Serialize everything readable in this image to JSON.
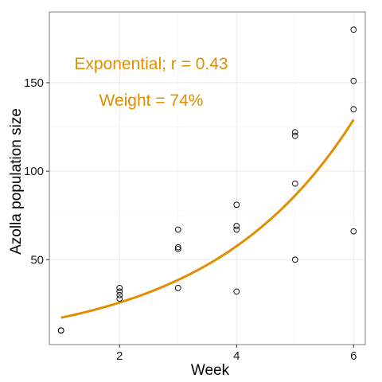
{
  "chart_data": {
    "type": "scatter",
    "xlabel": "Week",
    "ylabel": "Azolla population size",
    "xlim": [
      0.8,
      6.2
    ],
    "ylim": [
      2,
      190
    ],
    "xticks": [
      2,
      4,
      6
    ],
    "yticks": [
      50,
      100,
      150
    ],
    "grid": true,
    "legend": "none",
    "points": [
      {
        "x": 1,
        "y": 10
      },
      {
        "x": 1,
        "y": 10
      },
      {
        "x": 1,
        "y": 10
      },
      {
        "x": 1,
        "y": 10
      },
      {
        "x": 2,
        "y": 28
      },
      {
        "x": 2,
        "y": 30
      },
      {
        "x": 2,
        "y": 32
      },
      {
        "x": 2,
        "y": 34
      },
      {
        "x": 3,
        "y": 34
      },
      {
        "x": 3,
        "y": 56
      },
      {
        "x": 3,
        "y": 57
      },
      {
        "x": 3,
        "y": 67
      },
      {
        "x": 4,
        "y": 32
      },
      {
        "x": 4,
        "y": 67
      },
      {
        "x": 4,
        "y": 69
      },
      {
        "x": 4,
        "y": 81
      },
      {
        "x": 5,
        "y": 50
      },
      {
        "x": 5,
        "y": 93
      },
      {
        "x": 5,
        "y": 120
      },
      {
        "x": 5,
        "y": 122
      },
      {
        "x": 6,
        "y": 66
      },
      {
        "x": 6,
        "y": 135
      },
      {
        "x": 6,
        "y": 151
      },
      {
        "x": 6,
        "y": 180
      }
    ],
    "fit": {
      "type": "exponential",
      "a": 11.5,
      "b": 0.403,
      "x_range": [
        1,
        6
      ]
    },
    "annotations": [
      {
        "text": "Exponential; r = 0.43"
      },
      {
        "text": "Weight = 74%"
      }
    ],
    "colors": {
      "fit": "#df8f00",
      "annotation": "#df8f00",
      "point_stroke": "#000000",
      "grid": "#ebebeb",
      "panel_border": "#7f7f7f"
    }
  }
}
